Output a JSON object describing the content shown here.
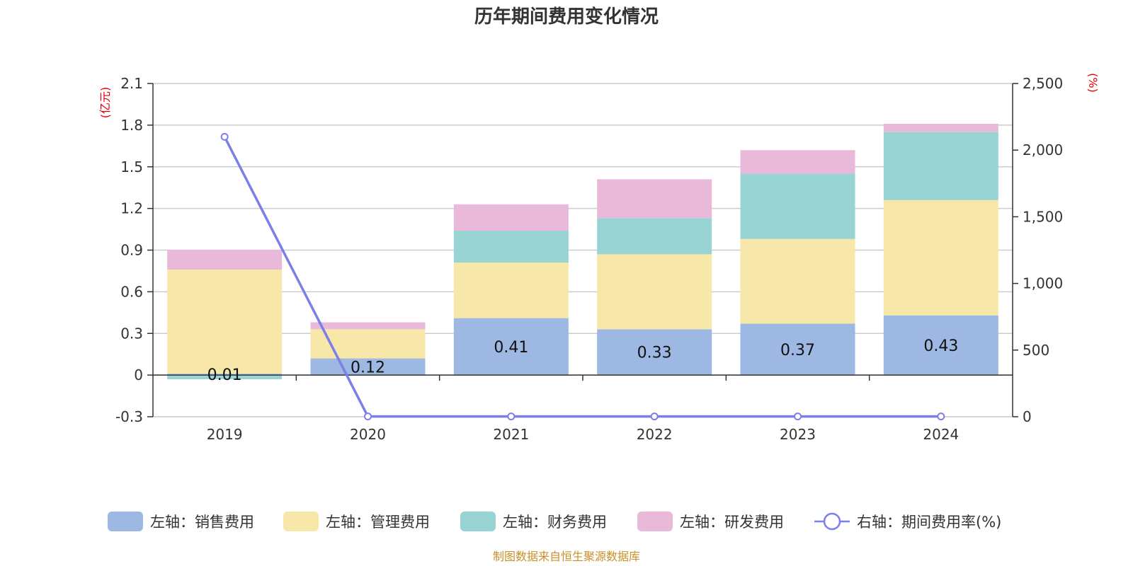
{
  "chart_data": {
    "type": "bar",
    "title": "历年期间费用变化情况",
    "categories": [
      "2019",
      "2020",
      "2021",
      "2022",
      "2023",
      "2024"
    ],
    "stacked": true,
    "left_axis": {
      "unit": "(亿元)",
      "ylim": [
        -0.3,
        2.1
      ],
      "ticks": [
        "2.1",
        "1.8",
        "1.5",
        "1.2",
        "0.9",
        "0.6",
        "0.3",
        "0",
        "-0.3"
      ],
      "tick_values": [
        2.1,
        1.8,
        1.5,
        1.2,
        0.9,
        0.6,
        0.3,
        0,
        -0.3
      ]
    },
    "right_axis": {
      "unit": "(%)",
      "ylim": [
        0,
        2500
      ],
      "ticks": [
        "2,500",
        "2,000",
        "1,500",
        "1,000",
        "500",
        "0"
      ],
      "tick_values": [
        2500,
        2000,
        1500,
        1000,
        500,
        0
      ]
    },
    "series": [
      {
        "name": "左轴：销售费用",
        "type": "bar",
        "axis": "left",
        "color": "#9db8e2",
        "values": [
          0.01,
          0.12,
          0.41,
          0.33,
          0.37,
          0.43
        ],
        "labels": [
          "0.01",
          "0.12",
          "0.41",
          "0.33",
          "0.37",
          "0.43"
        ]
      },
      {
        "name": "左轴：管理费用",
        "type": "bar",
        "axis": "left",
        "color": "#f7e7a8",
        "values": [
          0.75,
          0.21,
          0.4,
          0.54,
          0.61,
          0.83
        ]
      },
      {
        "name": "左轴：财务费用",
        "type": "bar",
        "axis": "left",
        "color": "#98d4d4",
        "values": [
          -0.03,
          0.0,
          0.23,
          0.26,
          0.47,
          0.49
        ]
      },
      {
        "name": "左轴：研发费用",
        "type": "bar",
        "axis": "left",
        "color": "#e8b9d8",
        "values": [
          0.14,
          0.05,
          0.19,
          0.28,
          0.17,
          0.06
        ]
      },
      {
        "name": "右轴：期间费用率(%)",
        "type": "line",
        "axis": "right",
        "color": "#7b7fe8",
        "values": [
          2100,
          2,
          2,
          2,
          2,
          2
        ]
      }
    ],
    "source": "制图数据来自恒生聚源数据库",
    "legend_position": "bottom",
    "grid": true
  }
}
